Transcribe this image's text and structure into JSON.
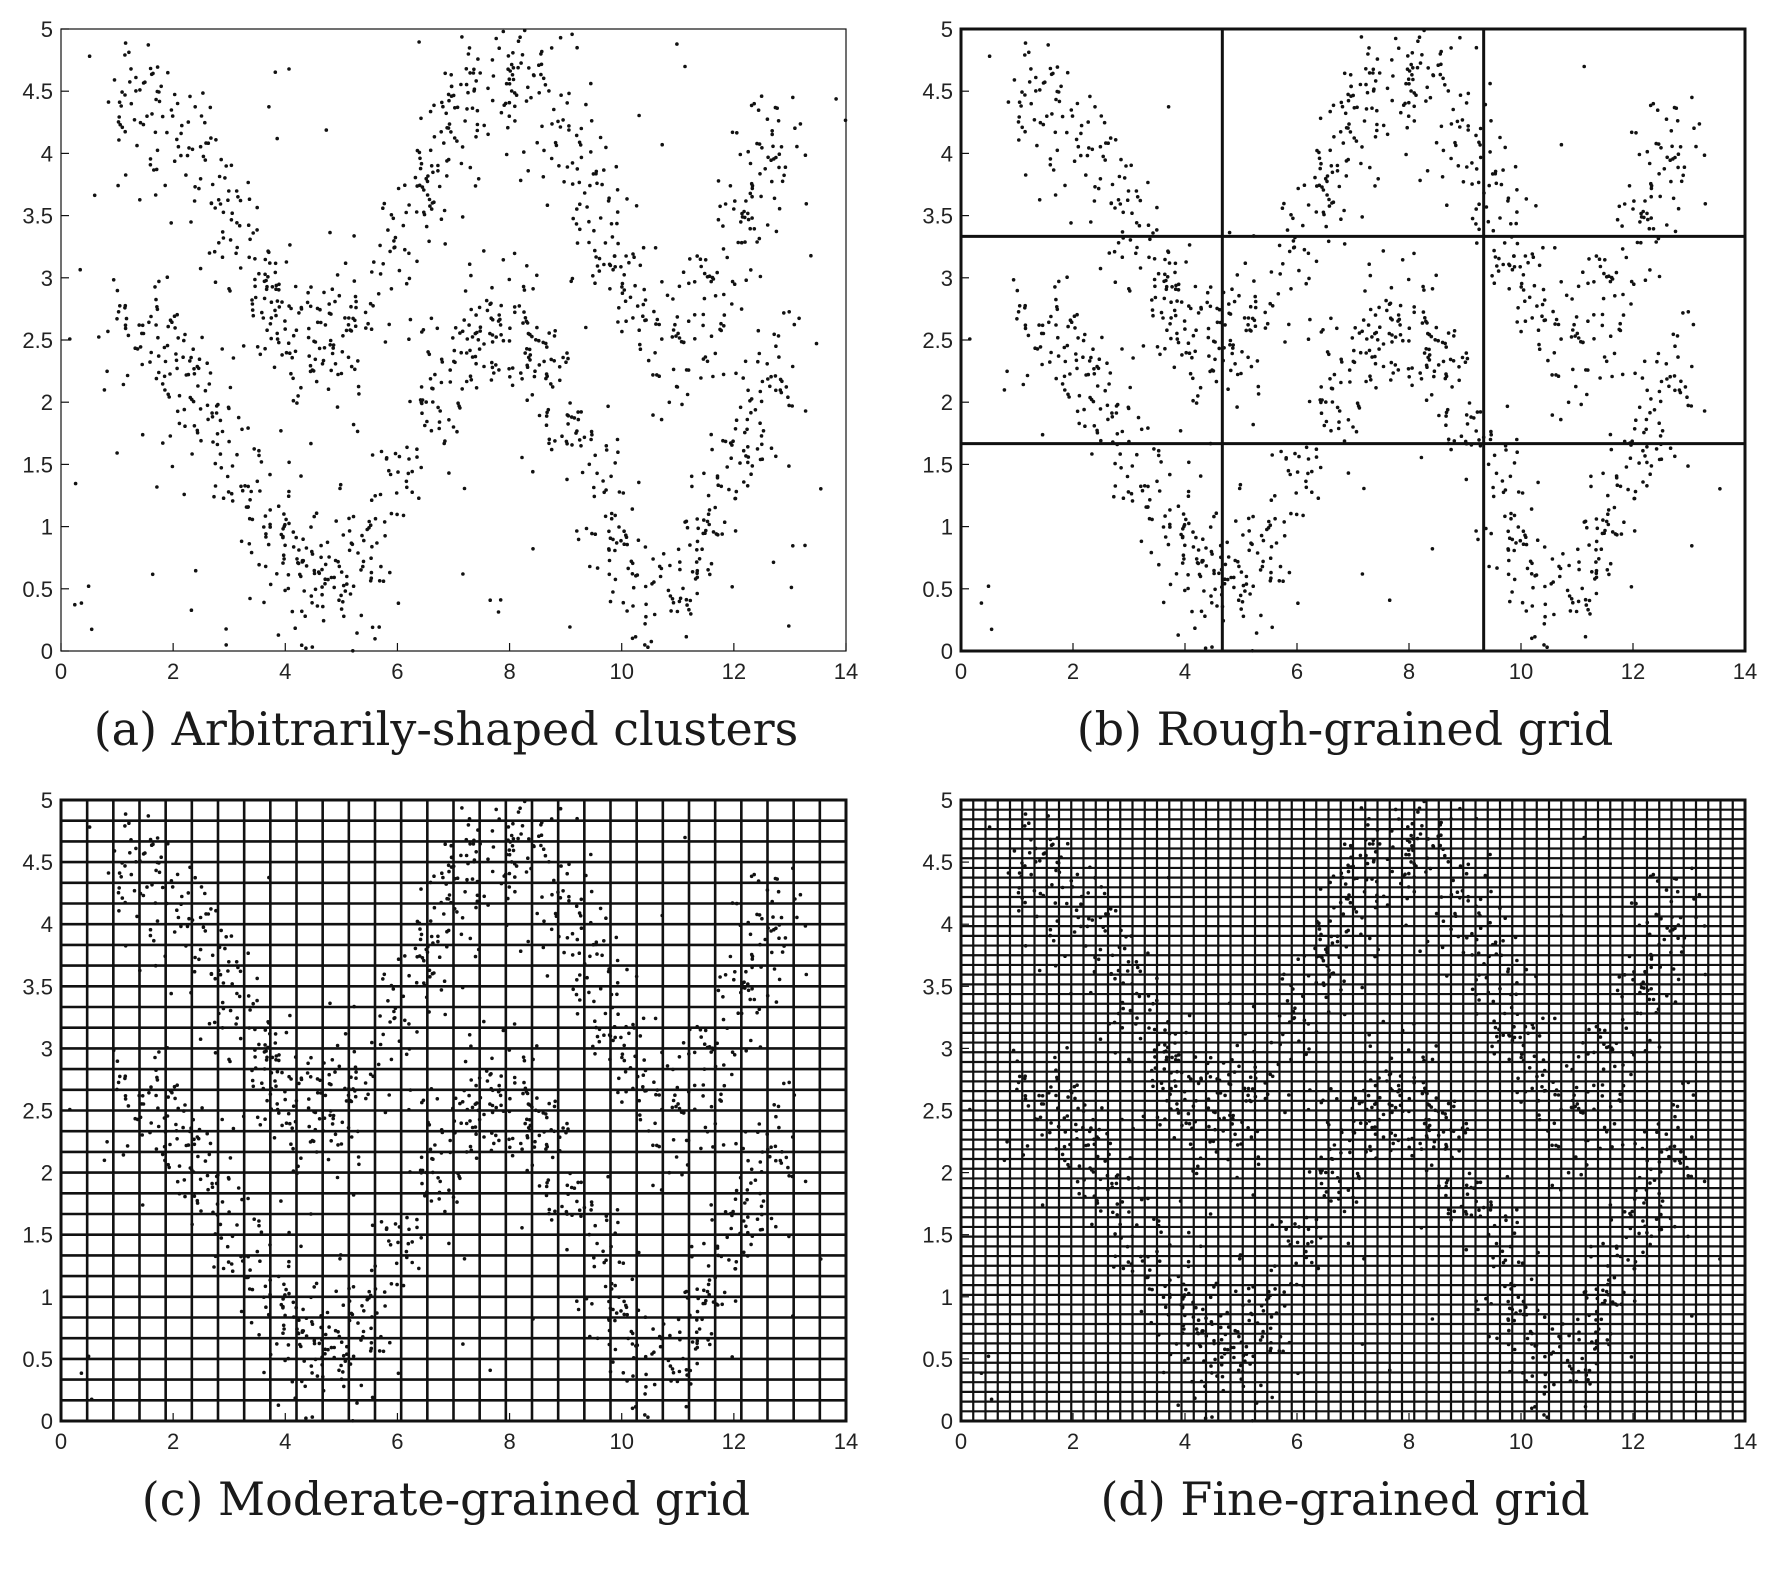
{
  "chart_data": [
    {
      "type": "scatter",
      "caption": "(a) Arbitrarily-shaped clusters",
      "grid_divisions": [
        0,
        0
      ],
      "grid_label": "none",
      "xlim": [
        0,
        14
      ],
      "ylim": [
        0,
        5
      ],
      "xticks": [
        "0",
        "2",
        "4",
        "6",
        "8",
        "10",
        "12",
        "14"
      ],
      "yticks": [
        "0",
        "0.5",
        "1",
        "1.5",
        "2",
        "2.5",
        "3",
        "3.5",
        "4",
        "4.5",
        "5"
      ],
      "point_count": 2000
    },
    {
      "type": "scatter",
      "caption": "(b) Rough-grained grid",
      "grid_divisions": [
        3,
        3
      ],
      "grid_label": "rough",
      "xlim": [
        0,
        14
      ],
      "ylim": [
        0,
        5
      ],
      "xticks": [
        "0",
        "2",
        "4",
        "6",
        "8",
        "10",
        "12",
        "14"
      ],
      "yticks": [
        "0",
        "0.5",
        "1",
        "1.5",
        "2",
        "2.5",
        "3",
        "3.5",
        "4",
        "4.5",
        "5"
      ],
      "point_count": 1400
    },
    {
      "type": "scatter",
      "caption": "(c) Moderate-grained grid",
      "grid_divisions": [
        30,
        30
      ],
      "grid_label": "moderate",
      "xlim": [
        0,
        14
      ],
      "ylim": [
        0,
        5
      ],
      "xticks": [
        "0",
        "2",
        "4",
        "6",
        "8",
        "10",
        "12",
        "14"
      ],
      "yticks": [
        "0",
        "0.5",
        "1",
        "1.5",
        "2",
        "2.5",
        "3",
        "3.5",
        "4",
        "4.5",
        "5"
      ],
      "point_count": 1400
    },
    {
      "type": "scatter",
      "caption": "(d) Fine-grained grid",
      "grid_divisions": [
        64,
        64
      ],
      "grid_label": "fine",
      "xlim": [
        0,
        14
      ],
      "ylim": [
        0,
        5
      ],
      "xticks": [
        "0",
        "2",
        "4",
        "6",
        "8",
        "10",
        "12",
        "14"
      ],
      "yticks": [
        "0",
        "0.5",
        "1",
        "1.5",
        "2",
        "2.5",
        "3",
        "3.5",
        "4",
        "4.5",
        "5"
      ],
      "point_count": 1400
    }
  ],
  "clusters": {
    "description_values": {
      "upper_wave": {
        "x_range": [
          1,
          13
        ],
        "center_y_at": [
          [
            1.5,
            4.4
          ],
          [
            4.5,
            2.5
          ],
          [
            8,
            4.6
          ],
          [
            11,
            2.5
          ],
          [
            12.8,
            4.0
          ]
        ]
      },
      "lower_wave": {
        "x_range": [
          1,
          13
        ],
        "center_y_at": [
          [
            1.5,
            2.5
          ],
          [
            4.8,
            0.6
          ],
          [
            7.8,
            2.6
          ],
          [
            10.8,
            0.5
          ],
          [
            12.8,
            2.2
          ]
        ]
      },
      "noise_fraction": 0.1
    }
  }
}
